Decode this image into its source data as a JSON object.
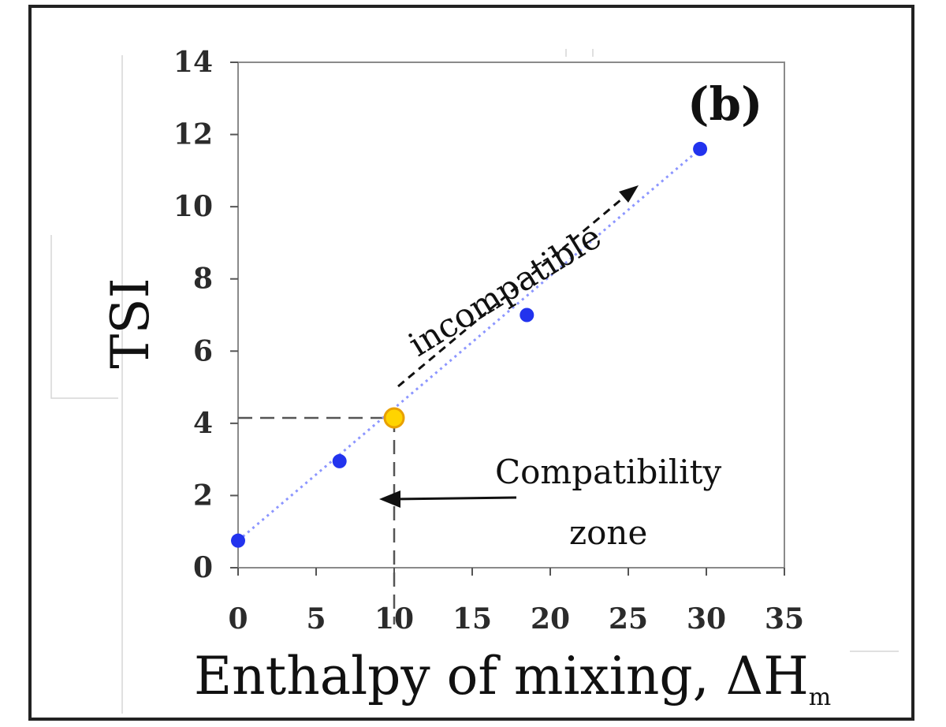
{
  "chart_data": {
    "type": "scatter",
    "panel_label": "(b)",
    "xlabel": "Enthalpy of mixing, ΔH",
    "xlabel_subscript": "m",
    "ylabel": "TSI",
    "xlim": [
      0,
      35
    ],
    "ylim": [
      0,
      14
    ],
    "x_ticks": [
      0,
      5,
      10,
      15,
      20,
      25,
      30,
      35
    ],
    "y_ticks": [
      0,
      2,
      4,
      6,
      8,
      10,
      12,
      14
    ],
    "grid": false,
    "series": [
      {
        "color": "#2233ee",
        "points": [
          {
            "x": 0,
            "y": 0.75
          },
          {
            "x": 6.5,
            "y": 2.95
          },
          {
            "x": 18.5,
            "y": 7.0
          },
          {
            "x": 29.6,
            "y": 11.6
          }
        ]
      }
    ],
    "highlight_point": {
      "x": 10,
      "y": 4.15,
      "color": "#ffd400",
      "edge_color": "#e8a000"
    },
    "trendline": {
      "x": [
        0,
        29.6
      ],
      "y": [
        0.75,
        11.6
      ],
      "color": "#8c96ff",
      "style": "dotted"
    },
    "annotations": [
      {
        "text": "incompatible",
        "style": "dashed-arrow"
      },
      {
        "text_line1": "Compatibility",
        "text_line2": "zone",
        "style": "arrow-left"
      }
    ]
  }
}
